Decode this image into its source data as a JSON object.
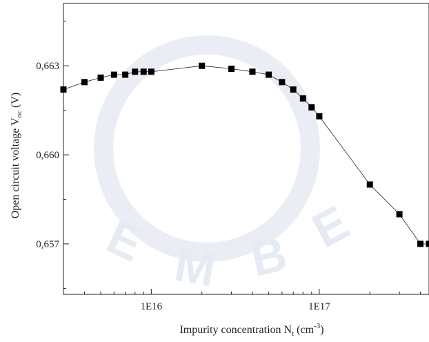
{
  "chart_data": {
    "type": "scatter",
    "line": true,
    "x_scale": "log",
    "xlim": [
      3000000000000000.0,
      4.5e+17
    ],
    "ylim": [
      0.6553,
      0.6651
    ],
    "x_ticks": [
      {
        "value": 1e+16,
        "label": "1E16"
      },
      {
        "value": 1e+17,
        "label": "1E17"
      }
    ],
    "y_ticks": [
      {
        "value": 0.657,
        "label": "0,657"
      },
      {
        "value": 0.66,
        "label": "0,660"
      },
      {
        "value": 0.663,
        "label": "0,663"
      }
    ],
    "xlabel": {
      "main": "Impurity concentration N",
      "sub": "t",
      "unit_open": "(cm",
      "sup": "-3",
      "unit_close": ")"
    },
    "ylabel": {
      "main": "Open circuit voltage V",
      "sub": "oc",
      "unit": "(V)"
    },
    "series": [
      {
        "marker": "square",
        "color": "#000000",
        "x": [
          3000000000000000.0,
          4000000000000000.0,
          5000000000000000.0,
          6000000000000000.0,
          7000000000000000.0,
          8000000000000000.0,
          9000000000000000.0,
          1e+16,
          2e+16,
          3e+16,
          4e+16,
          5e+16,
          6e+16,
          7e+16,
          8e+16,
          9e+16,
          1e+17,
          2e+17,
          3e+17,
          4e+17,
          4.5e+17
        ],
        "y": [
          0.6622,
          0.66245,
          0.6626,
          0.6627,
          0.6627,
          0.6628,
          0.6628,
          0.6628,
          0.663,
          0.6629,
          0.6628,
          0.6627,
          0.66245,
          0.6622,
          0.6619,
          0.6616,
          0.6613,
          0.659,
          0.658,
          0.657,
          0.657
        ]
      }
    ],
    "grid": false
  }
}
